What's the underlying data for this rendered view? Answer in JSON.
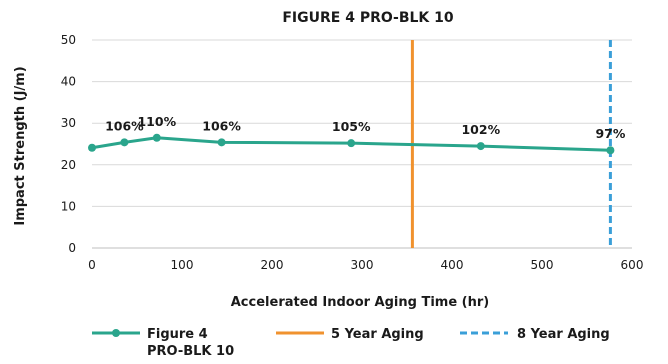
{
  "chart_data": {
    "type": "line",
    "title": "FIGURE 4 PRO-BLK 10",
    "xlabel": "Accelerated Indoor Aging Time (hr)",
    "ylabel": "Impact Strength (J/m)",
    "xlim": [
      0,
      600
    ],
    "ylim": [
      0,
      50
    ],
    "xticks": [
      0,
      100,
      200,
      300,
      400,
      500,
      600
    ],
    "yticks": [
      0,
      10,
      20,
      30,
      40,
      50
    ],
    "grid": true,
    "legend_position": "bottom",
    "series": [
      {
        "name": "Figure 4 PRO-BLK 10",
        "legend_lines": [
          "Figure 4",
          "PRO-BLK 10"
        ],
        "color": "#2aa58c",
        "marker": "circle",
        "points": [
          {
            "x": 0,
            "y": 24.1,
            "label": ""
          },
          {
            "x": 36,
            "y": 25.4,
            "label": "106%"
          },
          {
            "x": 72,
            "y": 26.5,
            "label": "110%"
          },
          {
            "x": 144,
            "y": 25.4,
            "label": "106%"
          },
          {
            "x": 288,
            "y": 25.2,
            "label": "105%"
          },
          {
            "x": 432,
            "y": 24.5,
            "label": "102%"
          },
          {
            "x": 576,
            "y": 23.5,
            "label": "97%"
          }
        ]
      }
    ],
    "reference_lines": [
      {
        "name": "5 Year Aging",
        "x": 356,
        "color": "#f0922e",
        "style": "solid"
      },
      {
        "name": "8 Year Aging",
        "x": 576,
        "color": "#3a9fd8",
        "style": "dashed"
      }
    ]
  }
}
